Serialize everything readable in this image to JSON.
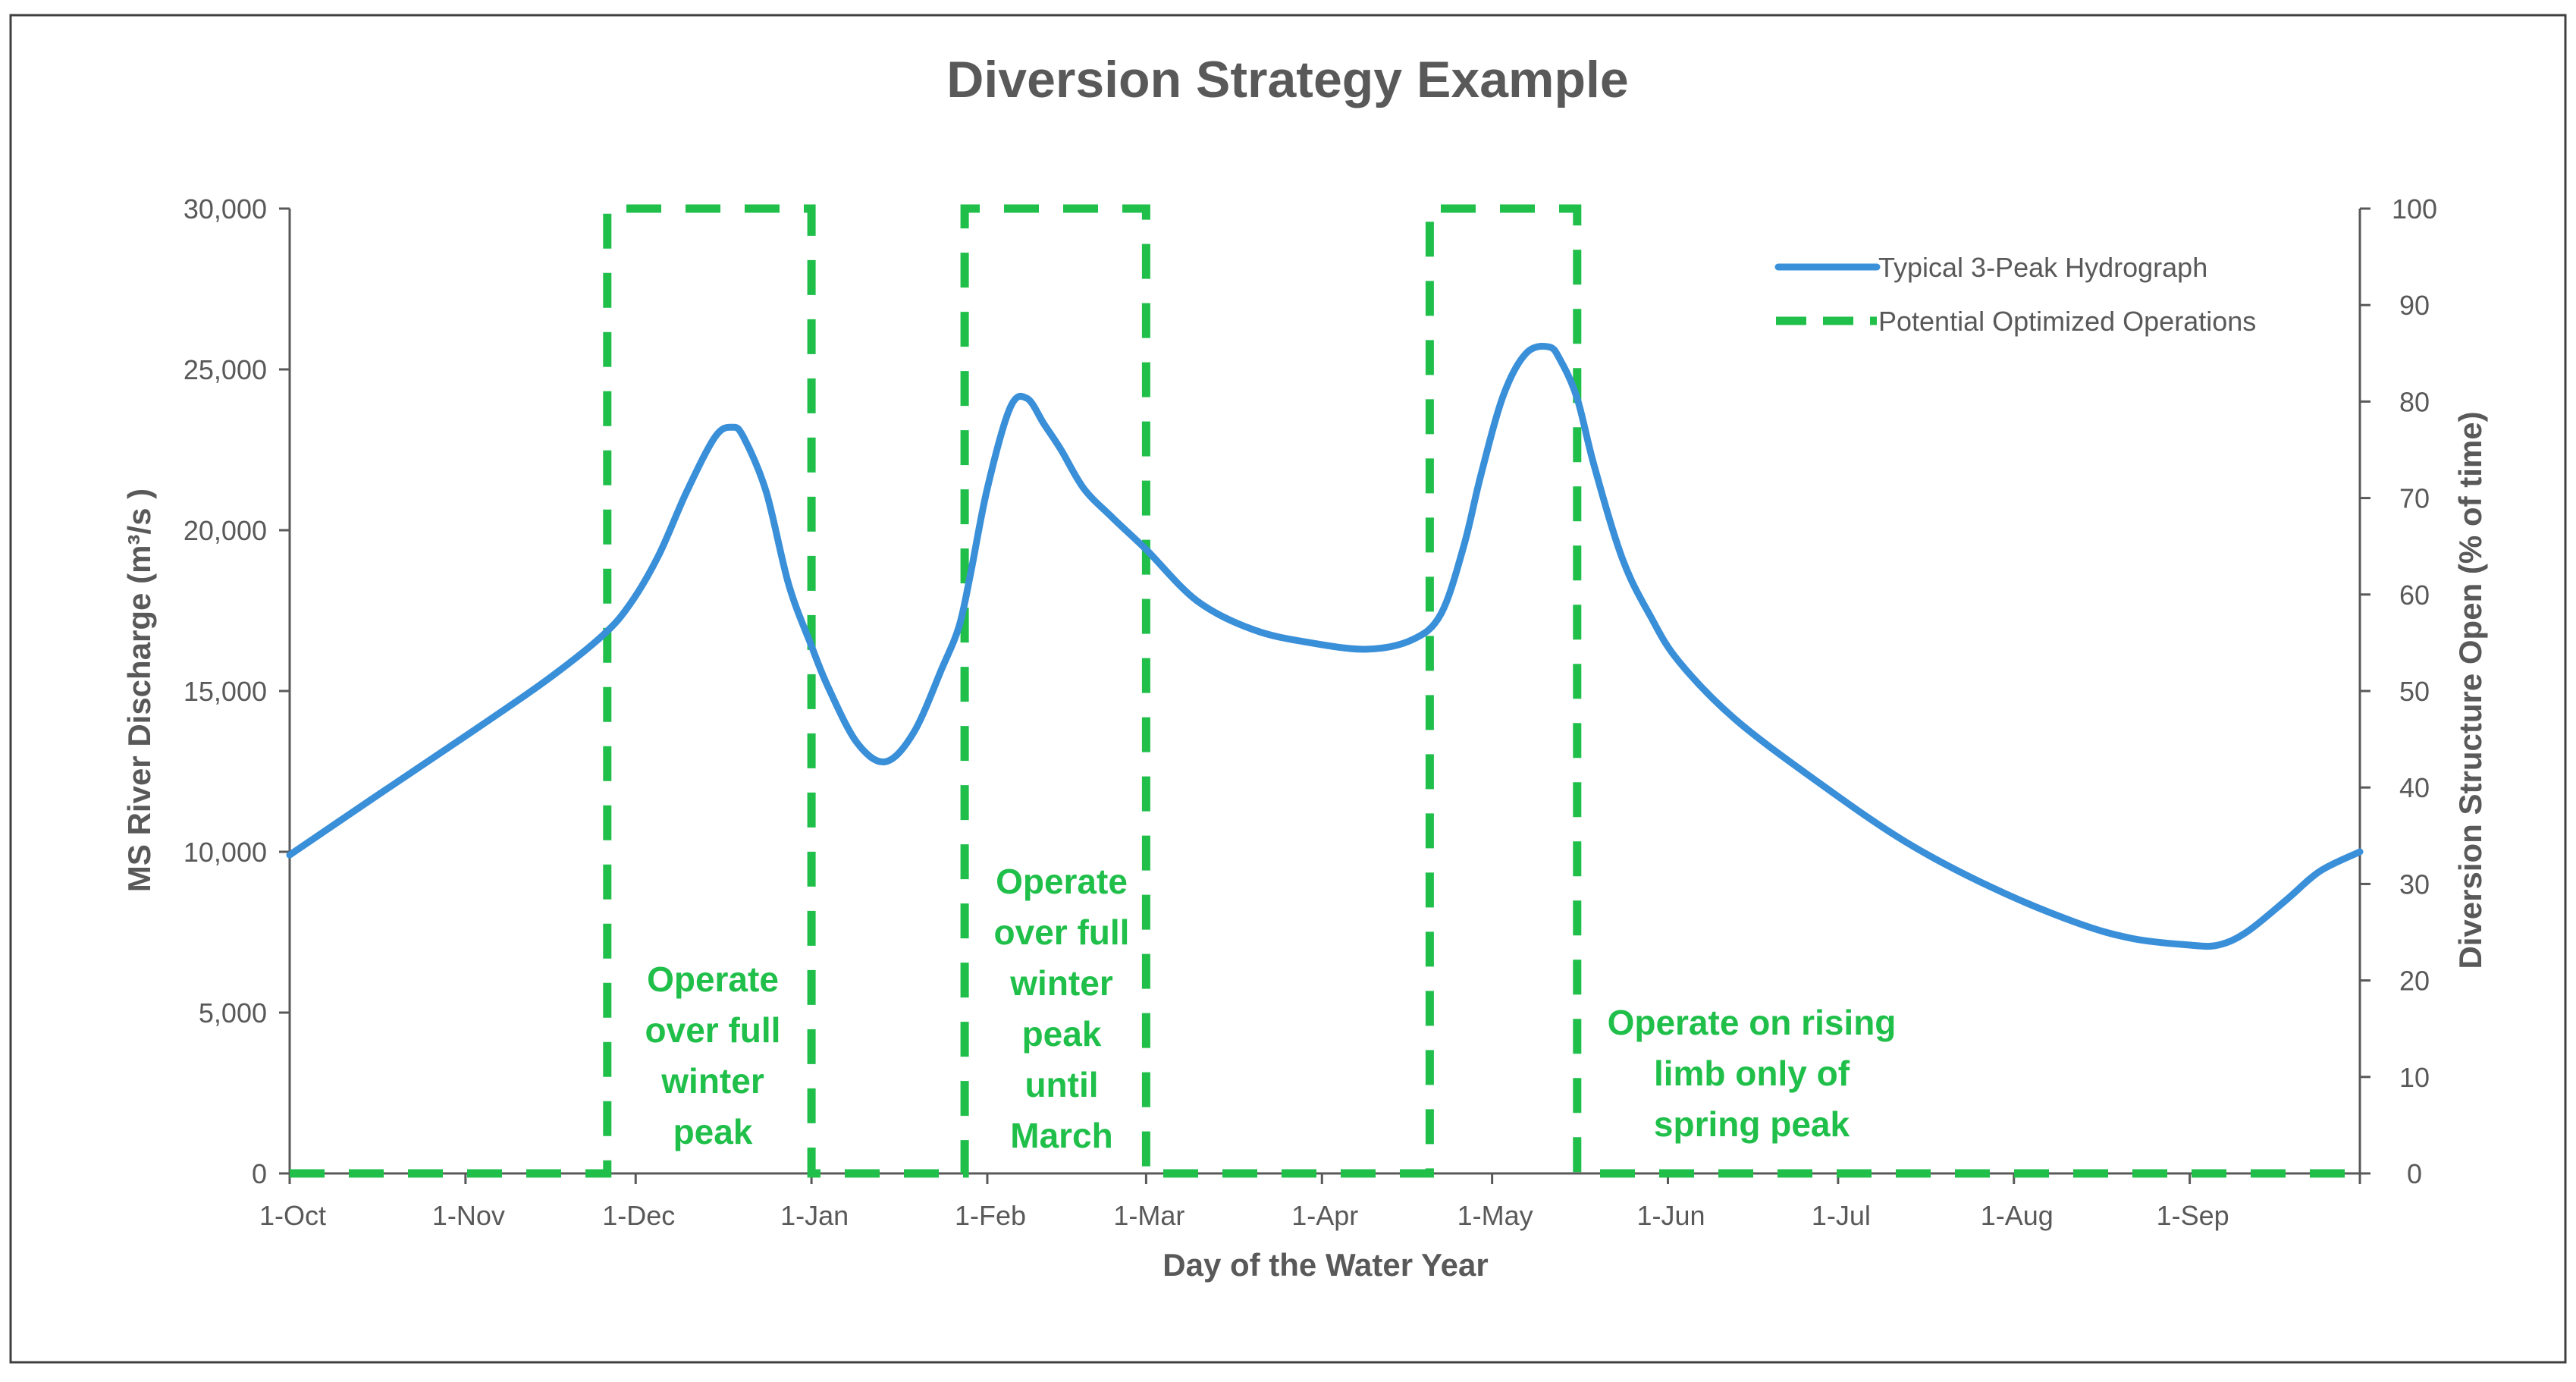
{
  "colors": {
    "hydrograph": "#3a8fd9",
    "operations": "#1fbf4a",
    "axis": "#595959",
    "frame": "#404040"
  },
  "chart_data": {
    "type": "line",
    "title": "Diversion Strategy Example",
    "xlabel": "Day of the Water Year",
    "ylabel_left": "MS River Discharge (m³/s )",
    "ylabel_right": "Diversion Structure Open (% of time)",
    "x_range_days": [
      0,
      365
    ],
    "ylim_left": [
      0,
      30000
    ],
    "ylim_right": [
      0,
      100
    ],
    "left_ticks": [
      "0",
      "5,000",
      "10,000",
      "15,000",
      "20,000",
      "25,000",
      "30,000"
    ],
    "left_tick_values": [
      0,
      5000,
      10000,
      15000,
      20000,
      25000,
      30000
    ],
    "right_ticks": [
      "0",
      "10",
      "20",
      "30",
      "40",
      "50",
      "60",
      "70",
      "80",
      "90",
      "100"
    ],
    "right_tick_values": [
      0,
      10,
      20,
      30,
      40,
      50,
      60,
      70,
      80,
      90,
      100
    ],
    "x_ticks": [
      "1-Oct",
      "1-Nov",
      "1-Dec",
      "1-Jan",
      "1-Feb",
      "1-Mar",
      "1-Apr",
      "1-May",
      "1-Jun",
      "1-Jul",
      "1-Aug",
      "1-Sep"
    ],
    "x_tick_days": [
      0,
      31,
      61,
      92,
      123,
      151,
      182,
      212,
      243,
      273,
      304,
      335
    ],
    "legend_position": "top-right",
    "series": [
      {
        "name": "Typical 3-Peak Hydrograph",
        "axis": "left",
        "style": "solid",
        "x": [
          0,
          15,
          31,
          45,
          55,
          60,
          65,
          70,
          75,
          78,
          80,
          84,
          88,
          92,
          95,
          100,
          105,
          110,
          115,
          118,
          120,
          123,
          127,
          130,
          133,
          136,
          140,
          145,
          151,
          160,
          170,
          180,
          190,
          198,
          203,
          207,
          210,
          214,
          218,
          222,
          224,
          227,
          230,
          235,
          240,
          245,
          255,
          270,
          285,
          300,
          315,
          325,
          335,
          340,
          345,
          352,
          358,
          365
        ],
        "y": [
          9900,
          11700,
          13600,
          15300,
          16700,
          17700,
          19200,
          21200,
          22900,
          23200,
          22900,
          21200,
          18300,
          16400,
          15100,
          13400,
          12800,
          13700,
          15700,
          17000,
          18600,
          21300,
          23800,
          24100,
          23300,
          22500,
          21300,
          20400,
          19400,
          17800,
          16900,
          16500,
          16300,
          16600,
          17400,
          19500,
          21700,
          24200,
          25500,
          25700,
          25300,
          24100,
          22000,
          19100,
          17300,
          15900,
          14100,
          12100,
          10300,
          8900,
          7800,
          7300,
          7100,
          7100,
          7500,
          8500,
          9400,
          10000
        ]
      },
      {
        "name": "Potential Optimized Operations",
        "axis": "right",
        "style": "dashed",
        "x": [
          0,
          56,
          56,
          92,
          92,
          119,
          119,
          151,
          151,
          201,
          201,
          227,
          227,
          365
        ],
        "y": [
          0,
          0,
          100,
          100,
          0,
          0,
          100,
          100,
          0,
          0,
          100,
          100,
          0,
          0
        ]
      }
    ],
    "annotations": [
      {
        "text": "Operate over full winter peak",
        "lines": [
          "Operate",
          "over full",
          "winter",
          "peak"
        ]
      },
      {
        "text": "Operate over full winter peak until March",
        "lines": [
          "Operate",
          "over full",
          "winter",
          "peak",
          "until",
          "March"
        ]
      },
      {
        "text": "Operate on rising limb only of spring peak",
        "lines": [
          "Operate on rising",
          "limb only of",
          "spring peak"
        ]
      }
    ]
  }
}
